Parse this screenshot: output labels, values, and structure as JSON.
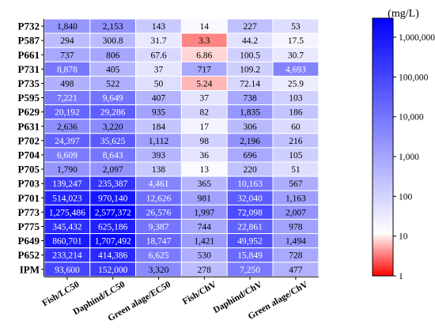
{
  "chart_data": {
    "type": "heatmap",
    "title": "",
    "xlabel": "",
    "ylabel": "",
    "rows": [
      "P732",
      "P587",
      "P661",
      "P731",
      "P735",
      "P595",
      "P629",
      "P631",
      "P702",
      "P704",
      "P705",
      "P703",
      "P701",
      "P773",
      "P775",
      "P649",
      "P652",
      "IPM"
    ],
    "columns": [
      "Fish/LC50",
      "Daphind/LC50",
      "Green alage/EC50",
      "Fish/ChV",
      "Daphind/ChV",
      "Green alage/ChV"
    ],
    "values": [
      [
        1840,
        2153,
        143,
        14,
        227,
        53
      ],
      [
        294,
        300.8,
        31.7,
        3.3,
        44.2,
        17.5
      ],
      [
        737,
        806,
        67.6,
        6.86,
        100.5,
        30.7
      ],
      [
        8878,
        405,
        37,
        717,
        109.2,
        4693
      ],
      [
        498,
        522,
        50,
        5.24,
        72.14,
        25.9
      ],
      [
        7221,
        9649,
        407,
        37,
        738,
        103
      ],
      [
        20192,
        29286,
        935,
        82,
        1835,
        186
      ],
      [
        2636,
        3220,
        184,
        17,
        306,
        60
      ],
      [
        24397,
        35625,
        1112,
        98,
        2196,
        216
      ],
      [
        6609,
        8643,
        393,
        36,
        696,
        105
      ],
      [
        1790,
        2097,
        138,
        13,
        220,
        51
      ],
      [
        139247,
        235387,
        4461,
        365,
        10163,
        567
      ],
      [
        514023,
        970140,
        12626,
        981,
        32040,
        1163
      ],
      [
        1275486,
        2577372,
        26576,
        1997,
        72098,
        2007
      ],
      [
        345432,
        625186,
        9387,
        744,
        22861,
        978
      ],
      [
        860701,
        1707492,
        18747,
        1421,
        49952,
        1494
      ],
      [
        233214,
        414386,
        6625,
        530,
        15849,
        728
      ],
      [
        93600,
        152000,
        3320,
        278,
        7250,
        477
      ]
    ],
    "labels": [
      [
        "1,840",
        "2,153",
        "143",
        "14",
        "227",
        "53"
      ],
      [
        "294",
        "300.8",
        "31.7",
        "3.3",
        "44.2",
        "17.5"
      ],
      [
        "737",
        "806",
        "67.6",
        "6.86",
        "100.5",
        "30.7"
      ],
      [
        "8,878",
        "405",
        "37",
        "717",
        "109.2",
        "4,693"
      ],
      [
        "498",
        "522",
        "50",
        "5.24",
        "72.14",
        "25.9"
      ],
      [
        "7,221",
        "9,649",
        "407",
        "37",
        "738",
        "103"
      ],
      [
        "20,192",
        "29,286",
        "935",
        "82",
        "1,835",
        "186"
      ],
      [
        "2,636",
        "3,220",
        "184",
        "17",
        "306",
        "60"
      ],
      [
        "24,397",
        "35,625",
        "1,112",
        "98",
        "2,196",
        "216"
      ],
      [
        "6,609",
        "8,643",
        "393",
        "36",
        "696",
        "105"
      ],
      [
        "1,790",
        "2,097",
        "138",
        "13",
        "220",
        "51"
      ],
      [
        "139,247",
        "235,387",
        "4,461",
        "365",
        "10,163",
        "567"
      ],
      [
        "514,023",
        "970,140",
        "12,626",
        "981",
        "32,040",
        "1,163"
      ],
      [
        "1,275,486",
        "2,577,372",
        "26,576",
        "1,997",
        "72,098",
        "2,007"
      ],
      [
        "345,432",
        "625,186",
        "9,387",
        "744",
        "22,861",
        "978"
      ],
      [
        "860,701",
        "1,707,492",
        "18,747",
        "1,421",
        "49,952",
        "1,494"
      ],
      [
        "233,214",
        "414,386",
        "6,625",
        "530",
        "15,849",
        "728"
      ],
      [
        "93,600",
        "152,000",
        "3,320",
        "278",
        "7,250",
        "477"
      ]
    ],
    "colorbar": {
      "unit": "(mg/L)",
      "scale": "log",
      "range": [
        1,
        3000000
      ],
      "midpoint": 10,
      "ticks": [
        1,
        10,
        100,
        1000,
        10000,
        100000,
        1000000
      ],
      "tick_labels": [
        "1",
        "10",
        "100",
        "1,000",
        "10,000",
        "100,000",
        "1,000,000"
      ],
      "colors": {
        "low": "#ff0000",
        "mid": "#ffffff",
        "high": "#0000ff"
      }
    },
    "grid": true,
    "legend_position": "right"
  }
}
